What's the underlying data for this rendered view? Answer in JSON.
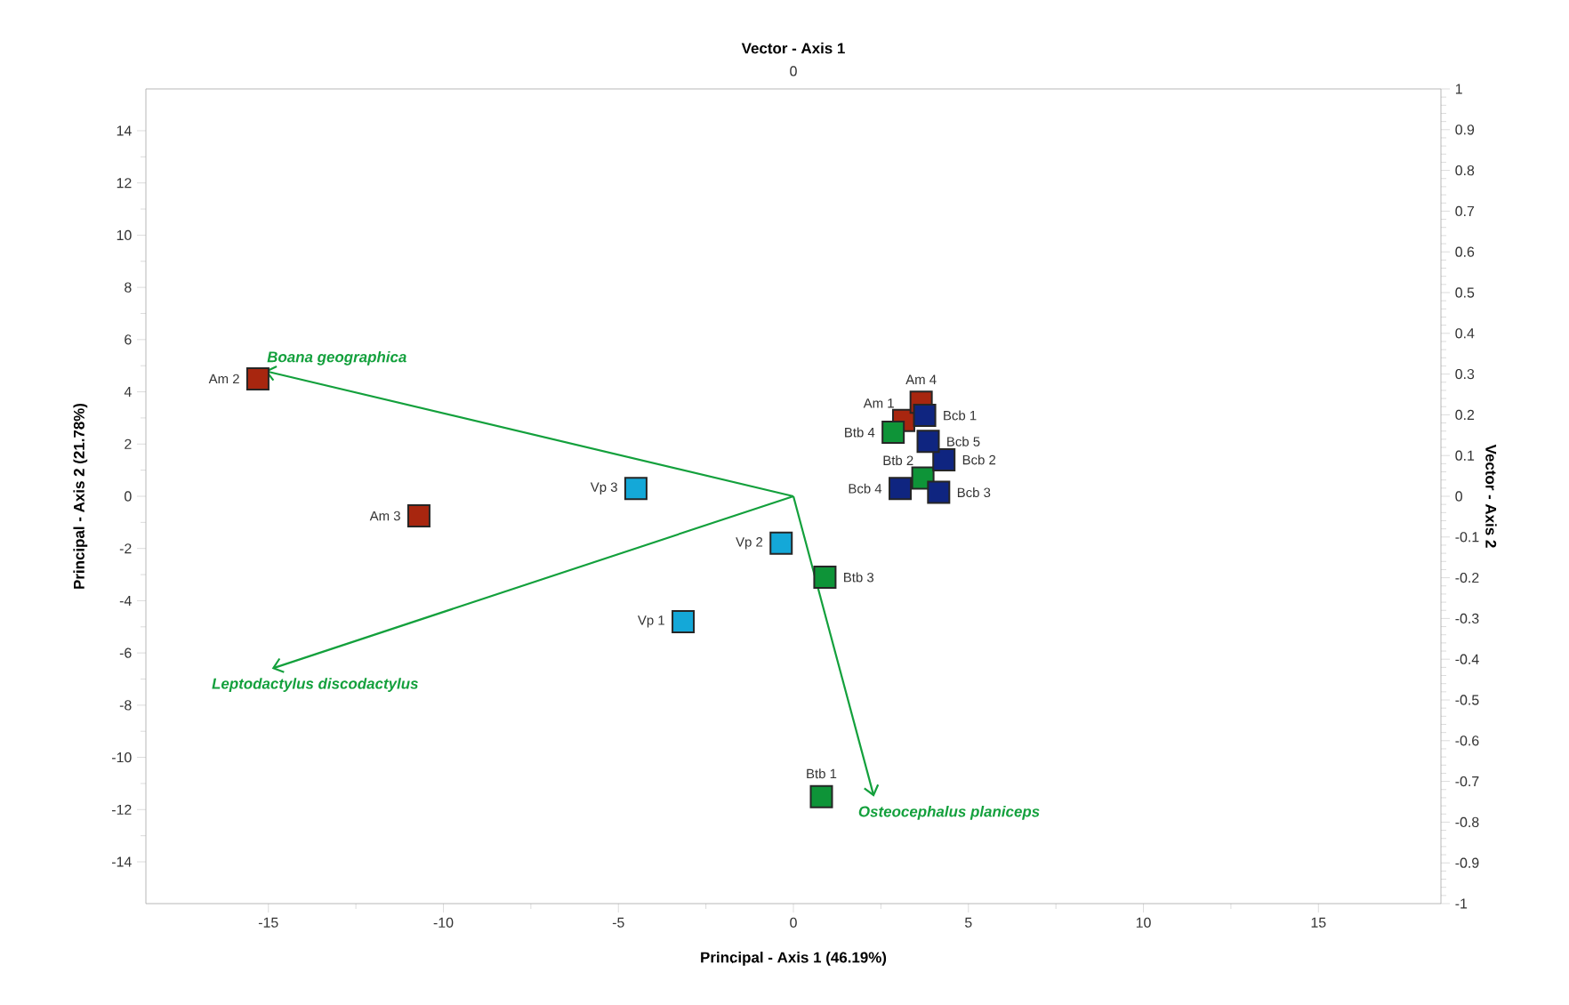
{
  "chart_data": {
    "type": "scatter",
    "xlabel": "Principal - Axis 1 (46.19%)",
    "ylabel": "Principal - Axis 2 (21.78%)",
    "x2label": "Vector - Axis 1",
    "y2label": "Vector - Axis 2",
    "xlim": [
      -18.5,
      18.5
    ],
    "xticks": [
      -15,
      -10,
      -5,
      0,
      5,
      10,
      15
    ],
    "ylim": [
      -15.6,
      15.6
    ],
    "yticks": [
      -14,
      -12,
      -10,
      -8,
      -6,
      -4,
      -2,
      0,
      2,
      4,
      6,
      8,
      10,
      12,
      14
    ],
    "y2lim": [
      -1,
      1
    ],
    "y2ticks": [
      -1,
      -0.9,
      -0.8,
      -0.7,
      -0.6,
      -0.5,
      -0.4,
      -0.3,
      -0.2,
      -0.1,
      0,
      0.1,
      0.2,
      0.3,
      0.4,
      0.5,
      0.6,
      0.7,
      0.8,
      0.9,
      1
    ],
    "grid": false,
    "marker": "square",
    "series": [
      {
        "color": "#a8260f",
        "x": [
          3.15,
          -15.3,
          -10.7,
          3.65
        ],
        "values": [
          2.9,
          4.5,
          -0.75,
          3.6
        ]
      },
      {
        "color": "#14a8d8",
        "x": [
          -3.15,
          -0.35,
          -4.5
        ],
        "values": [
          -4.8,
          -1.8,
          0.3
        ]
      },
      {
        "color": "#0e9438",
        "x": [
          0.8,
          3.7,
          0.9,
          2.85
        ],
        "values": [
          -11.5,
          0.7,
          -3.1,
          2.45
        ]
      },
      {
        "color": "#0f2580",
        "x": [
          3.75,
          4.3,
          4.15,
          3.05,
          3.85
        ],
        "values": [
          3.1,
          1.4,
          0.15,
          0.3,
          2.1
        ]
      }
    ],
    "annotations": [
      "Boana geographica",
      "Leptodactylus discodactylus",
      "Osteocephalus planiceps",
      {
        "text": "Am 2",
        "x": -15.3,
        "y": 4.5
      },
      {
        "text": "Am 3",
        "x": -10.7,
        "y": -0.75
      },
      {
        "text": "Vp 3",
        "x": -4.5,
        "y": 0.3
      },
      {
        "text": "Vp 2",
        "x": -0.35,
        "y": -1.8
      },
      {
        "text": "Vp 1",
        "x": -3.15,
        "y": -4.8
      },
      {
        "text": "Btb 3",
        "x": 0.9,
        "y": -3.1
      },
      {
        "text": "Btb 1",
        "x": 0.8,
        "y": -11.5
      },
      {
        "text": "Am 4",
        "x": 3.65,
        "y": 3.6
      },
      {
        "text": "Am 1",
        "x": 3.15,
        "y": 2.9
      },
      {
        "text": "Bcb 1",
        "x": 3.75,
        "y": 3.1
      },
      {
        "text": "Btb 4",
        "x": 2.85,
        "y": 2.45
      },
      {
        "text": "Bcb 5",
        "x": 3.85,
        "y": 2.1
      },
      {
        "text": "Bcb 2",
        "x": 4.3,
        "y": 1.4
      },
      {
        "text": "Btb 2",
        "x": 3.7,
        "y": 0.7
      },
      {
        "text": "Bcb 4",
        "x": 3.05,
        "y": 0.3
      },
      {
        "text": "Bcb 3",
        "x": 4.15,
        "y": 0.15
      },
      "0"
    ]
  }
}
